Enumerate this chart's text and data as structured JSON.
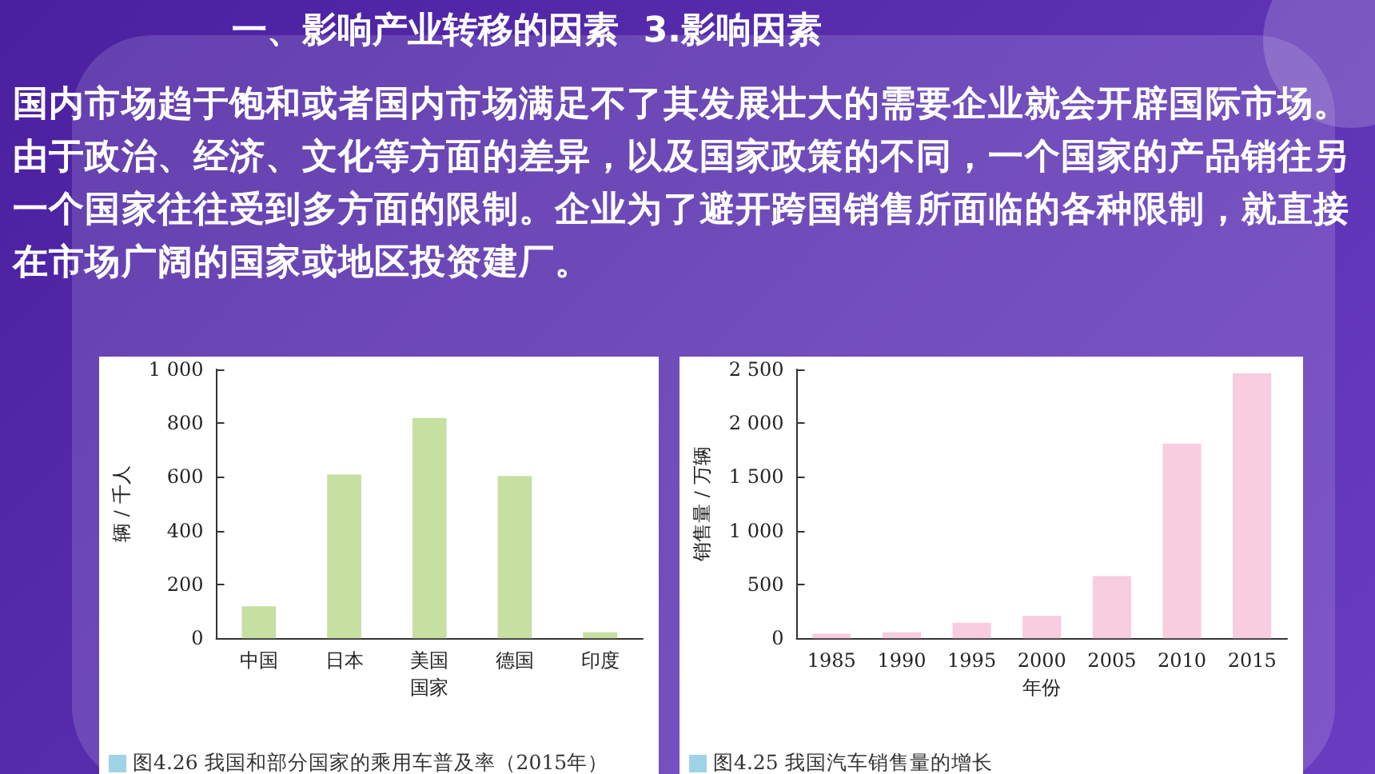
{
  "chart_data": [
    {
      "type": "other",
      "title": "一、影响产业转移的因素  3.影响因素",
      "annotations": [
        "国内市场趋于饱和或者国内市场满足不了其发展壮大的需要企业就会开辟国际市场。由于政治、经济、文化等方面的差异，以及国家政策的不同，一个国家的产品销往另一个国家往往受到多方面的限制。企业为了避开跨国销售所面临的各种限制，就直接在市场广阔的国家或地区投资建厂。"
      ]
    },
    {
      "type": "bar",
      "categories": [
        "中国",
        "日本",
        "美国",
        "德国",
        "印度"
      ],
      "values": [
        119,
        609,
        819,
        604,
        22
      ],
      "color": "#c5e0a0",
      "xlabel": "国家",
      "ylabel": "辆 / 千人",
      "ylim": [
        0,
        1000
      ],
      "yticks": [
        0,
        200,
        400,
        600,
        800,
        {
          "value": 1000,
          "label": "1 000"
        }
      ],
      "grid": false,
      "annotations": [
        "图4.26  我国和部分国家的乘用车普及率（2015年）"
      ]
    },
    {
      "type": "bar",
      "categories": [
        "1985",
        "1990",
        "1995",
        "2000",
        "2005",
        "2010",
        "2015"
      ],
      "values": [
        43,
        56,
        143,
        208,
        577,
        1810,
        2465
      ],
      "color": "#f8cde0",
      "xlabel": "年份",
      "ylabel": "销售量 / 万辆",
      "ylim": [
        0,
        2500
      ],
      "yticks": [
        0,
        500,
        {
          "value": 1000,
          "label": "1 000"
        },
        {
          "value": 1500,
          "label": "1 500"
        },
        {
          "value": 2000,
          "label": "2 000"
        },
        {
          "value": 2500,
          "label": "2 500"
        }
      ],
      "grid": false,
      "annotations": [
        "图4.25  我国汽车销售量的增长"
      ]
    }
  ]
}
